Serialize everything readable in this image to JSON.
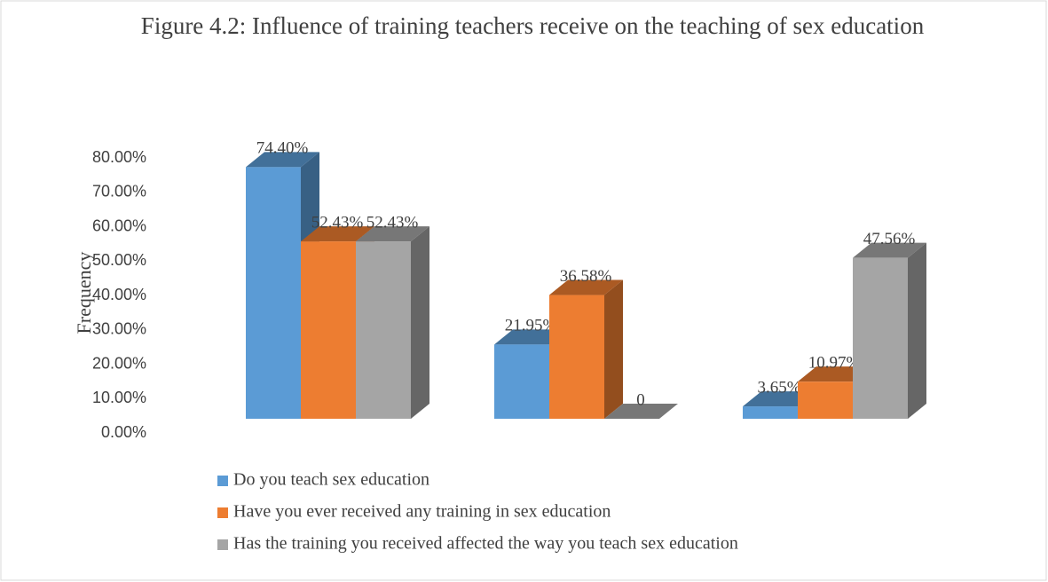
{
  "chart_data": {
    "type": "bar3d",
    "title": "Figure 4.2: Influence of training teachers receive on the teaching of sex education",
    "y_label": "Frequency",
    "categories": [
      null,
      null,
      null
    ],
    "series": [
      {
        "name": "Do you teach sex education",
        "color": "#5b9bd5",
        "values": [
          74.4,
          21.95,
          3.65
        ],
        "value_labels": [
          "74.40%",
          "21.95%",
          "3.65%"
        ]
      },
      {
        "name": "Have you ever received any training in sex education",
        "color": "#ed7d31",
        "values": [
          52.43,
          36.58,
          10.97
        ],
        "value_labels": [
          "52.43%",
          "36.58%",
          "10.97%"
        ]
      },
      {
        "name": "Has the training you received affected the way you teach sex education",
        "color": "#a5a5a5",
        "values": [
          52.43,
          0,
          47.56
        ],
        "value_labels": [
          "52.43%",
          "0",
          "47.56%"
        ]
      }
    ],
    "ylim": [
      0,
      80
    ],
    "yticks": [
      {
        "value": 0,
        "label": "0.00%"
      },
      {
        "value": 10,
        "label": "10.00%"
      },
      {
        "value": 20,
        "label": "20.00%"
      },
      {
        "value": 30,
        "label": "30.00%"
      },
      {
        "value": 40,
        "label": "40.00%"
      },
      {
        "value": 50,
        "label": "50.00%"
      },
      {
        "value": 60,
        "label": "60.00%"
      },
      {
        "value": 70,
        "label": "70.00%"
      },
      {
        "value": 80,
        "label": "80.00%"
      }
    ],
    "legend": "bottom"
  }
}
